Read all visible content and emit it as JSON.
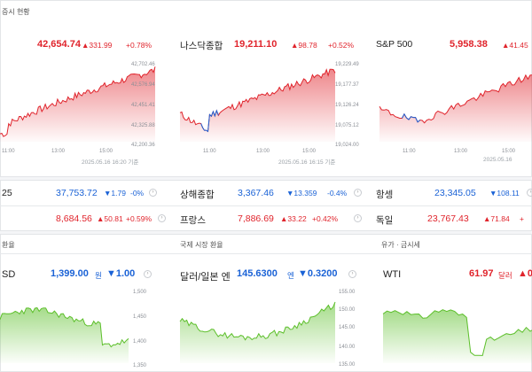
{
  "section_titles": {
    "indices": "증시 현황",
    "fx": "환율",
    "intl_fx": "국제 시장 환율",
    "commodities": "유가 · 금시세"
  },
  "index_cards": [
    {
      "name": "",
      "value": "42,654.74",
      "change": "▲331.99",
      "pct": "+0.78%",
      "timestamp": "2025.05.16 16:20 기준",
      "y_ticks": [
        "42,702.46",
        "42,576.94",
        "42,451.41",
        "42,325.88",
        "42,200.36"
      ],
      "x_ticks": [
        "11:00",
        "13:00",
        "15:00"
      ]
    },
    {
      "name": "나스닥종합",
      "value": "19,211.10",
      "change": "▲98.78",
      "pct": "+0.52%",
      "timestamp": "2025.05.16 16:15 기준",
      "y_ticks": [
        "19,229.49",
        "19,177.37",
        "19,126.24",
        "19,075.12",
        "19,024.00"
      ],
      "x_ticks": [
        "11:00",
        "13:00",
        "15:00"
      ]
    },
    {
      "name": "S&P 500",
      "value": "5,958.38",
      "change": "▲41.45",
      "pct": "",
      "timestamp": "2025.05.16",
      "y_ticks": [],
      "x_ticks": [
        "11:00",
        "13:00",
        "15:00"
      ]
    }
  ],
  "index_rows": [
    [
      {
        "name": "25",
        "value": "37,753.72",
        "change": "▼1.79",
        "pct": "-0%",
        "dir": "down"
      },
      {
        "name": "상해종합",
        "value": "3,367.46",
        "change": "▼13.359",
        "pct": "-0.4%",
        "dir": "down"
      },
      {
        "name": "항셍",
        "value": "23,345.05",
        "change": "▼108.11",
        "pct": "",
        "dir": "down"
      }
    ],
    [
      {
        "name": "",
        "value": "8,684.56",
        "change": "▲50.81",
        "pct": "+0.59%",
        "dir": "up"
      },
      {
        "name": "프랑스",
        "value": "7,886.69",
        "change": "▲33.22",
        "pct": "+0.42%",
        "dir": "up"
      },
      {
        "name": "독일",
        "value": "23,767.43",
        "change": "▲71.84",
        "pct": "+",
        "dir": "up"
      }
    ]
  ],
  "fx_cards": [
    {
      "name": "SD",
      "value": "1,399.00",
      "unit": "원",
      "change": "▼1.00",
      "y_ticks": [
        "1,500",
        "1,450",
        "1,400",
        "1,350"
      ]
    },
    {
      "name": "달러/일본 엔",
      "value": "145.6300",
      "unit": "엔",
      "change": "▼0.3200",
      "y_ticks": [
        "155.00",
        "150.00",
        "145.00",
        "140.00",
        "135.00"
      ]
    },
    {
      "name": "WTI",
      "value": "61.97",
      "unit": "달러",
      "change": "▲0",
      "y_ticks": []
    }
  ],
  "colors": {
    "up": "#e0242c",
    "down": "#1a62d6",
    "fx_line": "#5cbf2a"
  }
}
